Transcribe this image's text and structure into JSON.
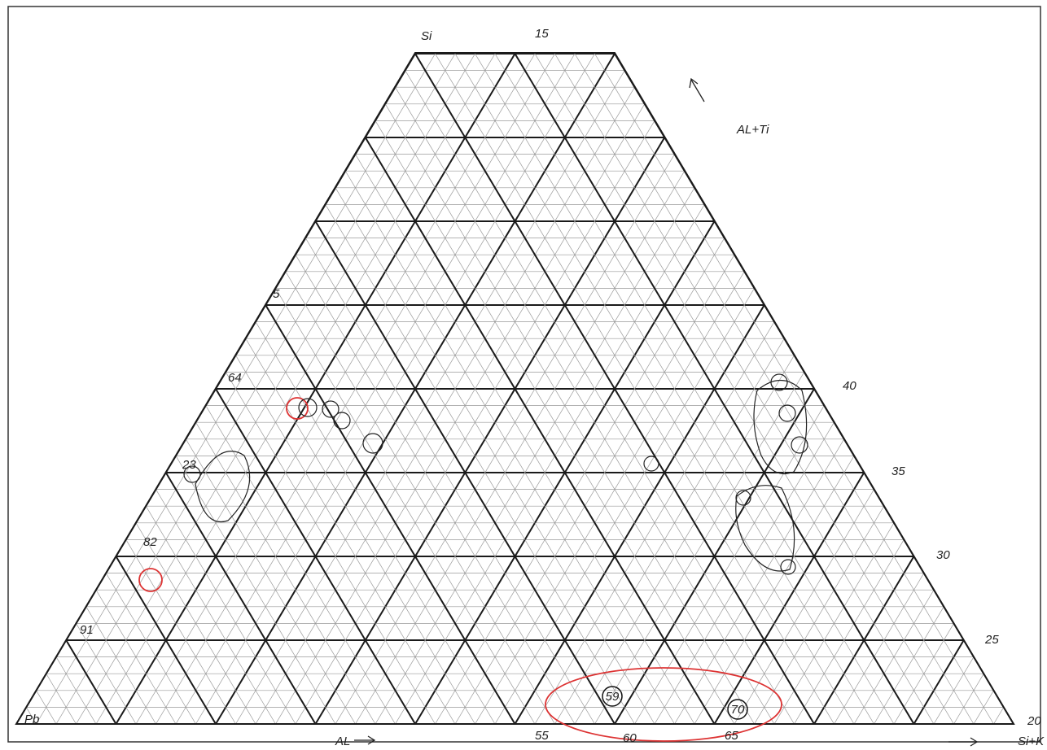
{
  "diagram": {
    "axis_labels": [
      "Si",
      "15",
      "AL+Ti",
      "5",
      "64",
      "40",
      "23",
      "35",
      "82",
      "30",
      "91",
      "25",
      "Pb",
      "AL",
      "55",
      "60",
      "65",
      "Si+K",
      "20"
    ],
    "circled_points": [
      "59",
      "70"
    ]
  }
}
